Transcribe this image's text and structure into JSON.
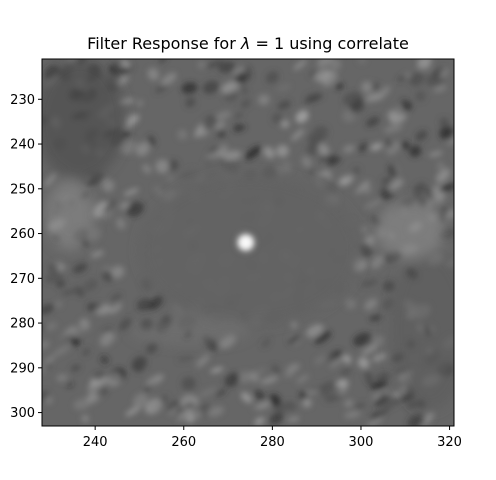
{
  "chart_data": {
    "type": "heatmap",
    "title": "Filter Response for λ = 1 using correlate",
    "title_parts": {
      "before": "Filter Response for ",
      "symbol": "λ",
      "after": " = 1 using correlate"
    },
    "colormap": "gray",
    "xlabel": "",
    "ylabel": "",
    "xlim": [
      228,
      321
    ],
    "ylim": [
      303,
      221
    ],
    "x_ticks": [
      240,
      260,
      280,
      300,
      320
    ],
    "y_ticks": [
      230,
      240,
      250,
      260,
      270,
      280,
      290,
      300
    ],
    "background_level": 0.4,
    "peak": {
      "x": 274,
      "y": 262,
      "level": 1.0
    },
    "grid": false
  }
}
